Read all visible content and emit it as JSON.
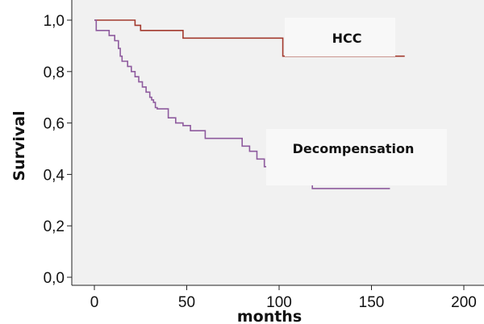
{
  "chart_data": {
    "type": "line",
    "step": true,
    "xlabel": "months",
    "ylabel": "Survival",
    "xlim": [
      0,
      200
    ],
    "ylim": [
      0,
      1
    ],
    "xticks": [
      "0",
      "50",
      "100",
      "150",
      "200"
    ],
    "yticks": [
      "0,0",
      "0,2",
      "0,4",
      "0,6",
      "0,8",
      "1,0"
    ],
    "grid": false,
    "colors": {
      "plot_background": "#f1f1f1",
      "label_background": "#f8f8f8"
    },
    "series": [
      {
        "name": "HCC",
        "color": "#a33a2e",
        "x": [
          0,
          22,
          25,
          48,
          102,
          168
        ],
        "y": [
          1.0,
          0.98,
          0.96,
          0.93,
          0.86,
          0.86
        ]
      },
      {
        "name": "Decompensation",
        "color": "#8e5b9e",
        "x": [
          0,
          1,
          8,
          11,
          13,
          14,
          15,
          18,
          20,
          22,
          24,
          26,
          28,
          30,
          31,
          32,
          33,
          34,
          35,
          36,
          40,
          44,
          48,
          52,
          60,
          80,
          84,
          88,
          92,
          96,
          118,
          160
        ],
        "y": [
          1.0,
          0.96,
          0.94,
          0.92,
          0.89,
          0.86,
          0.84,
          0.82,
          0.8,
          0.78,
          0.76,
          0.74,
          0.72,
          0.7,
          0.69,
          0.68,
          0.66,
          0.655,
          0.655,
          0.655,
          0.62,
          0.6,
          0.59,
          0.57,
          0.54,
          0.51,
          0.49,
          0.46,
          0.43,
          0.415,
          0.345,
          0.345
        ]
      }
    ]
  }
}
